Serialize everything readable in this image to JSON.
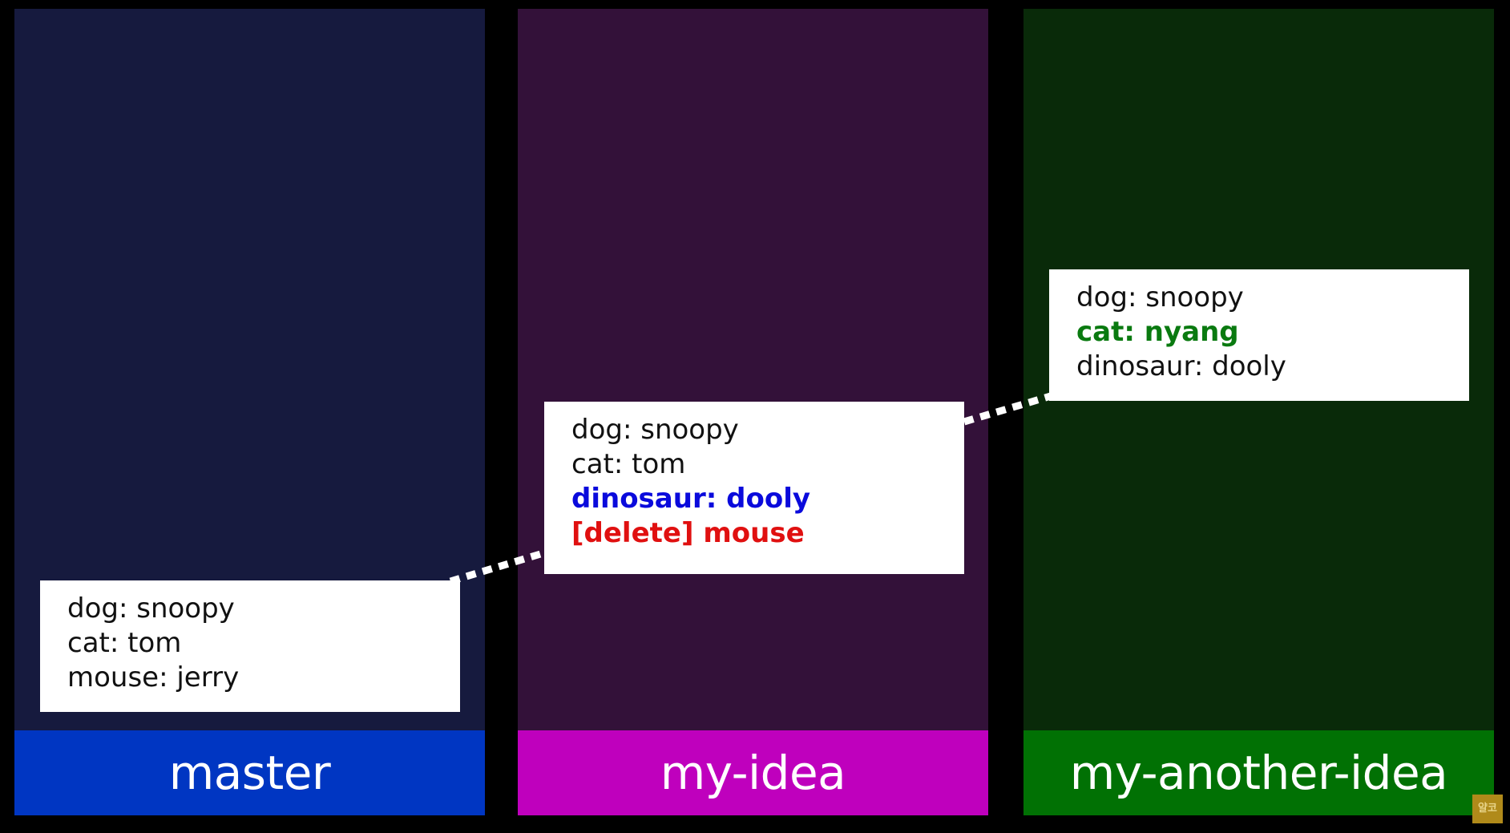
{
  "colors": {
    "background": "#000000",
    "master_column": "#161a3e",
    "idea_column": "#331139",
    "another_column": "#092a09",
    "master_label_bg": "#0036c2",
    "idea_label_bg": "#bf00bd",
    "another_label_bg": "#017104",
    "added_text": "#0a0adc",
    "deleted_text": "#e01010",
    "changed_text": "#0a7a10",
    "normal_text": "#111111",
    "connector": "#ffffff"
  },
  "branches": [
    {
      "label": "master",
      "lines": [
        {
          "text": "dog: snoopy",
          "style": "normal"
        },
        {
          "text": "cat: tom",
          "style": "normal"
        },
        {
          "text": "mouse: jerry",
          "style": "normal"
        }
      ]
    },
    {
      "label": "my-idea",
      "lines": [
        {
          "text": "dog: snoopy",
          "style": "normal"
        },
        {
          "text": "cat: tom",
          "style": "normal"
        },
        {
          "text": "dinosaur: dooly",
          "style": "added"
        },
        {
          "text": "[delete] mouse",
          "style": "deleted"
        }
      ]
    },
    {
      "label": "my-another-idea",
      "lines": [
        {
          "text": "dog: snoopy",
          "style": "normal"
        },
        {
          "text": "cat: nyang",
          "style": "changed"
        },
        {
          "text": "dinosaur: dooly",
          "style": "normal"
        }
      ]
    }
  ],
  "badge": {
    "icon": "channel-logo-icon",
    "text": "얄코"
  }
}
